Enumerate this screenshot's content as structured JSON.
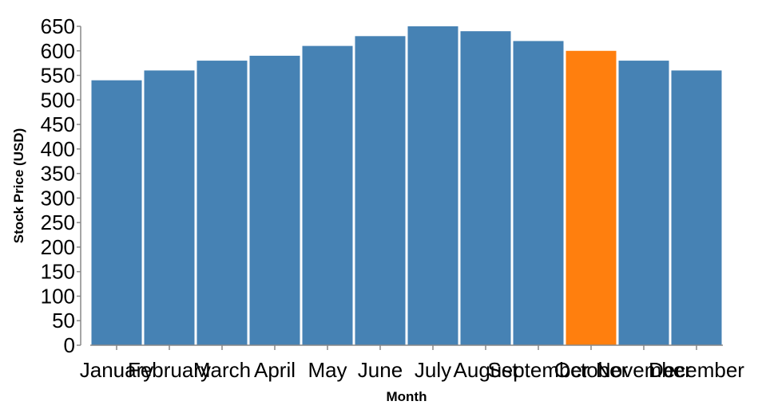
{
  "chart_data": {
    "type": "bar",
    "categories": [
      "January",
      "February",
      "March",
      "April",
      "May",
      "June",
      "July",
      "August",
      "September",
      "October",
      "November",
      "December"
    ],
    "values": [
      540,
      560,
      580,
      590,
      610,
      630,
      650,
      640,
      620,
      600,
      580,
      560
    ],
    "highlight_index": 9,
    "xlabel": "Month",
    "ylabel": "Stock Price (USD)",
    "ylim": [
      0,
      650
    ],
    "yticks": [
      0,
      50,
      100,
      150,
      200,
      250,
      300,
      350,
      400,
      450,
      500,
      550,
      600,
      650
    ],
    "grid": false,
    "colors": {
      "bar": "#4682b4",
      "highlight": "#ff7f0e",
      "axis": "#888888"
    }
  }
}
